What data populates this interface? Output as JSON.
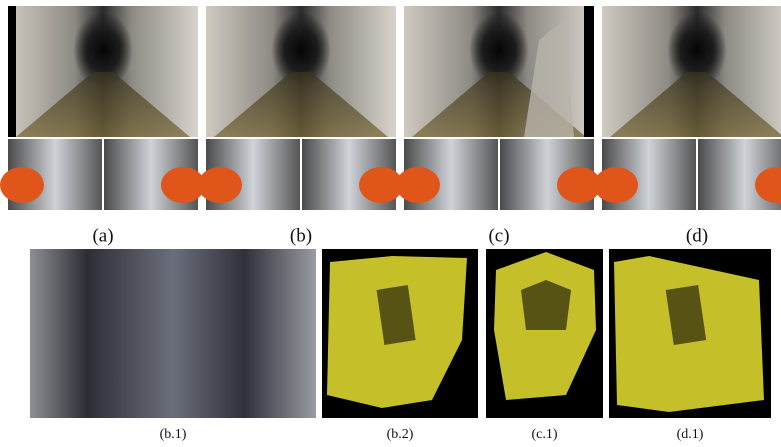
{
  "figure": {
    "top_labels": [
      "(a)",
      "(b)",
      "(c)",
      "(d)"
    ],
    "bottom_labels": [
      "(b.1)",
      "(b.2)",
      "(c.1)",
      "(d.1)"
    ]
  }
}
